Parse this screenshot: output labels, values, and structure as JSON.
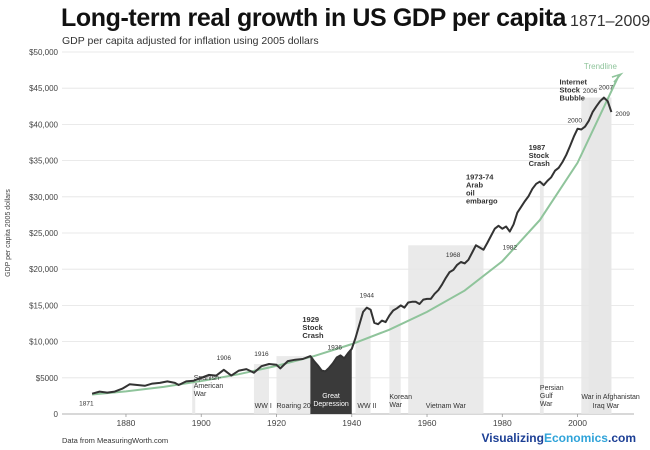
{
  "header": {
    "title": "Long-term real growth in US GDP per capita",
    "years": "1871–2009",
    "subtitle": "GDP per capita adjusted for inflation using 2005 dollars"
  },
  "footer": {
    "source": "Data from MeasuringWorth.com",
    "brand_part1": "Visualizing",
    "brand_part2": "Economics",
    "brand_part3": ".com"
  },
  "colors": {
    "line": "#333333",
    "trend": "#8fc49b",
    "shade": "#e6e6e6",
    "depression_fill": "#3a3a3a",
    "brand_dark": "#1c3f95",
    "brand_light": "#2fa3d9"
  },
  "chart_data": {
    "type": "line",
    "xlabel": "",
    "ylabel": "GDP per capita 2005 dollars",
    "xlim": [
      1863,
      2015
    ],
    "ylim": [
      0,
      50000
    ],
    "xticks": [
      1880,
      1900,
      1920,
      1940,
      1960,
      1980,
      2000
    ],
    "xtick_labels": [
      "1880",
      "1900",
      "1920",
      "1940",
      "1960",
      "1980",
      "2000"
    ],
    "yticks": [
      0,
      5000,
      10000,
      15000,
      20000,
      25000,
      30000,
      35000,
      40000,
      45000,
      50000
    ],
    "ytick_labels": [
      "0",
      "$5000",
      "$10,000",
      "$15,000",
      "$20,000",
      "$25,000",
      "$30,000",
      "$35,000",
      "$40,000",
      "$45,000",
      "$50,000"
    ],
    "grid": true,
    "series": [
      {
        "x": [
          1871,
          1873,
          1875,
          1877,
          1879,
          1881,
          1883,
          1885,
          1887,
          1889,
          1891,
          1893,
          1894,
          1896,
          1898,
          1900,
          1902,
          1904,
          1906,
          1908,
          1910,
          1912,
          1914,
          1916,
          1918,
          1920,
          1921,
          1923,
          1925,
          1927,
          1929,
          1930,
          1931,
          1932,
          1933,
          1934,
          1935,
          1936,
          1937,
          1938,
          1939,
          1940,
          1941,
          1942,
          1943,
          1944,
          1945,
          1946,
          1947,
          1948,
          1949,
          1950,
          1951,
          1952,
          1953,
          1954,
          1955,
          1956,
          1957,
          1958,
          1959,
          1960,
          1961,
          1962,
          1963,
          1964,
          1965,
          1966,
          1967,
          1968,
          1969,
          1970,
          1971,
          1972,
          1973,
          1974,
          1975,
          1976,
          1977,
          1978,
          1979,
          1980,
          1981,
          1982,
          1983,
          1984,
          1985,
          1986,
          1987,
          1988,
          1989,
          1990,
          1991,
          1992,
          1993,
          1994,
          1995,
          1996,
          1997,
          1998,
          1999,
          2000,
          2001,
          2002,
          2003,
          2004,
          2005,
          2006,
          2007,
          2008,
          2009
        ],
        "values": [
          2800,
          3100,
          2950,
          3100,
          3500,
          4100,
          4000,
          3900,
          4200,
          4300,
          4500,
          4300,
          4000,
          4500,
          4600,
          5000,
          5400,
          5300,
          6100,
          5300,
          6000,
          6200,
          5700,
          6600,
          6900,
          6800,
          6300,
          7300,
          7500,
          7600,
          8000,
          7300,
          6700,
          6000,
          5900,
          6400,
          7000,
          7800,
          8100,
          7700,
          8400,
          9000,
          10500,
          12300,
          14100,
          14700,
          14400,
          12600,
          12400,
          12900,
          12700,
          13600,
          14300,
          14600,
          15000,
          14700,
          15400,
          15500,
          15500,
          15200,
          15800,
          15900,
          15900,
          16600,
          17100,
          17900,
          18800,
          19600,
          19900,
          20600,
          21000,
          20800,
          21300,
          22300,
          23300,
          23000,
          22700,
          23600,
          24600,
          25600,
          26000,
          25600,
          25900,
          25200,
          26200,
          27800,
          28600,
          29400,
          30100,
          31100,
          31800,
          32100,
          31600,
          32200,
          32700,
          33600,
          34000,
          34800,
          35800,
          37000,
          38300,
          39400,
          39300,
          39700,
          40500,
          41700,
          42500,
          43200,
          43700,
          43200,
          41700
        ]
      }
    ],
    "trendline": {
      "label": "Trendline",
      "x": [
        1871,
        1880,
        1890,
        1900,
        1910,
        1920,
        1930,
        1940,
        1950,
        1960,
        1970,
        1980,
        1990,
        2000,
        2011
      ],
      "values": [
        2700,
        3130,
        3750,
        4550,
        5500,
        6650,
        8000,
        9650,
        11650,
        14100,
        17050,
        21100,
        26800,
        34700,
        46800
      ]
    },
    "shaded_periods": [
      {
        "label": "Spanish-American War",
        "start": 1898,
        "end": 1898
      },
      {
        "label": "WW I",
        "start": 1914,
        "end": 1918
      },
      {
        "label": "Roaring 20s",
        "start": 1920,
        "end": 1929
      },
      {
        "label": "Great Depression",
        "start": 1929,
        "end": 1940,
        "dark": true
      },
      {
        "label": "WW II",
        "start": 1941,
        "end": 1945
      },
      {
        "label": "Korean War",
        "start": 1950,
        "end": 1953
      },
      {
        "label": "Vietnam War",
        "start": 1955,
        "end": 1975
      },
      {
        "label": "Persian Gulf War",
        "start": 1990,
        "end": 1991
      },
      {
        "label": "War in Afghanistan",
        "start": 2001,
        "end": 2009
      },
      {
        "label": "Iraq War",
        "start": 2003,
        "end": 2009
      }
    ],
    "annotations": [
      {
        "text": "1871",
        "x": 1871,
        "y": 2800,
        "bold": false
      },
      {
        "text": "1906",
        "x": 1906,
        "y": 6100,
        "bold": false
      },
      {
        "text": "1916",
        "x": 1916,
        "y": 6600,
        "bold": false
      },
      {
        "text": "1929 Stock Crash",
        "x": 1929,
        "y": 8000,
        "bold": true
      },
      {
        "text": "1936",
        "x": 1936,
        "y": 7800,
        "bold": false
      },
      {
        "text": "1944",
        "x": 1944,
        "y": 14700,
        "bold": false
      },
      {
        "text": "1968",
        "x": 1968,
        "y": 20600,
        "bold": false
      },
      {
        "text": "1973-74 Arab oil embargo",
        "x": 1973,
        "y": 23300,
        "bold": true
      },
      {
        "text": "1982",
        "x": 1982,
        "y": 25200,
        "bold": false
      },
      {
        "text": "1987 Stock Crash",
        "x": 1987,
        "y": 30100,
        "bold": true
      },
      {
        "text": "Internet Stock Bubble",
        "x": 2000,
        "y": 39400,
        "bold": true
      },
      {
        "text": "2000",
        "x": 2000,
        "y": 39400,
        "bold": false
      },
      {
        "text": "2006",
        "x": 2006,
        "y": 43200,
        "bold": false
      },
      {
        "text": "2007",
        "x": 2007,
        "y": 43700,
        "bold": false
      },
      {
        "text": "2009",
        "x": 2009,
        "y": 41700,
        "bold": false
      }
    ]
  }
}
